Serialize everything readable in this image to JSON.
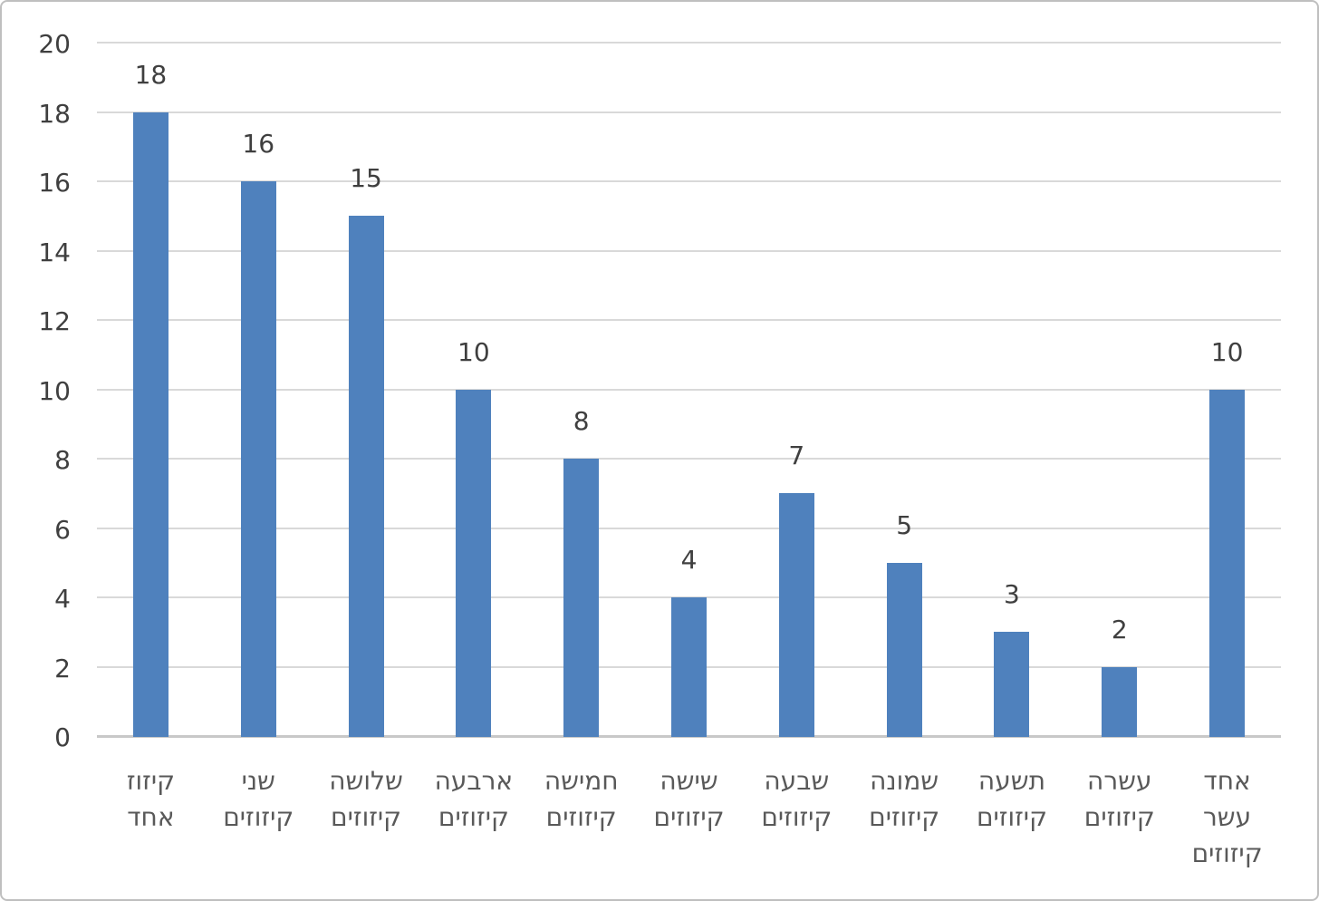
{
  "chart_data": {
    "type": "bar",
    "title": "",
    "xlabel": "",
    "ylabel": "",
    "direction": "rtl",
    "legend": "none",
    "grid": true,
    "categories": [
      "קיזוז אחד",
      "שני קיזוזים",
      "שלושה קיזוזים",
      "ארבעה קיזוזים",
      "חמישה קיזוזים",
      "שישה קיזוזים",
      "שבעה קיזוזים",
      "שמונה קיזוזים",
      "תשעה קיזוזים",
      "עשרה קיזוזים",
      "אחד עשר קיזוזים"
    ],
    "category_lines": [
      [
        "קיזוז",
        "אחד"
      ],
      [
        "שני",
        "קיזוזים"
      ],
      [
        "שלושה",
        "קיזוזים"
      ],
      [
        "ארבעה",
        "קיזוזים"
      ],
      [
        "חמישה",
        "קיזוזים"
      ],
      [
        "שישה",
        "קיזוזים"
      ],
      [
        "שבעה",
        "קיזוזים"
      ],
      [
        "שמונה",
        "קיזוזים"
      ],
      [
        "תשעה",
        "קיזוזים"
      ],
      [
        "עשרה",
        "קיזוזים"
      ],
      [
        "אחד",
        "עשר",
        "קיזוזים"
      ]
    ],
    "values": [
      18,
      16,
      15,
      10,
      8,
      4,
      7,
      5,
      3,
      2,
      10
    ],
    "data_labels": [
      "18",
      "16",
      "15",
      "10",
      "8",
      "4",
      "7",
      "5",
      "3",
      "2",
      "10"
    ],
    "y_ticks": [
      0,
      2,
      4,
      6,
      8,
      10,
      12,
      14,
      16,
      18,
      20
    ],
    "ylim": [
      0,
      20
    ],
    "colors": {
      "bar": "#4F81BD",
      "gridline": "#D9D9D9",
      "axis_line": "#C8C8C8",
      "value_label": "#3F3F3F",
      "tick_label": "#3F3F3F",
      "category_label": "#595959",
      "background": "#FFFFFF",
      "frame_border": "#BFBFBF"
    }
  }
}
